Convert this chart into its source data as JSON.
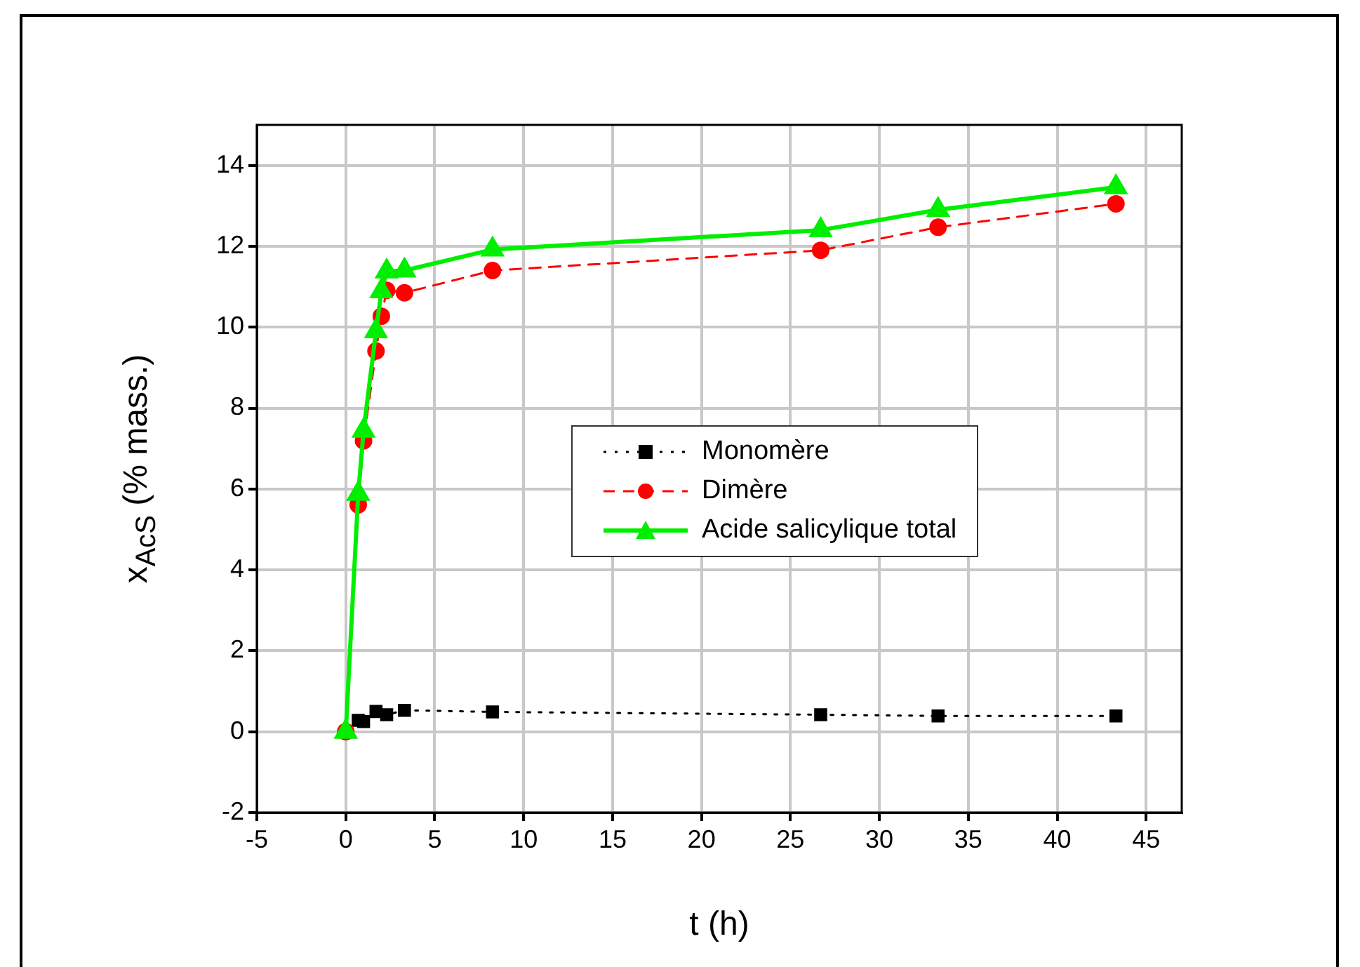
{
  "chart_data": {
    "type": "line",
    "xlabel": "t (h)",
    "ylabel": "x$_{AcS}$ (% mass.)",
    "x": [
      0,
      0.7,
      1.0,
      1.7,
      2.0,
      2.3,
      3.3,
      8.25,
      26.7,
      33.3,
      43.3
    ],
    "series": [
      {
        "name": "Monomère",
        "color": "#000000",
        "marker": "square",
        "line_style": "dotted",
        "x": [
          0,
          0.7,
          1.0,
          1.7,
          2.3,
          3.3,
          8.25,
          26.7,
          33.3,
          43.3
        ],
        "values": [
          0,
          0.28,
          0.25,
          0.5,
          0.42,
          0.53,
          0.49,
          0.42,
          0.39,
          0.39
        ]
      },
      {
        "name": "Dimère",
        "color": "#ff0000",
        "marker": "circle",
        "line_style": "dashed",
        "values": [
          0,
          5.61,
          7.19,
          9.41,
          10.27,
          10.91,
          10.85,
          11.4,
          11.9,
          12.47,
          13.05
        ]
      },
      {
        "name": "Acide salicylique total",
        "color": "#00ee00",
        "marker": "triangle",
        "line_style": "solid",
        "values": [
          0,
          5.88,
          7.44,
          9.9,
          10.89,
          11.38,
          11.4,
          11.92,
          12.4,
          12.9,
          13.46
        ]
      }
    ],
    "xlim": [
      -5,
      47
    ],
    "xticks": [
      -5,
      0,
      5,
      10,
      15,
      20,
      25,
      30,
      35,
      40,
      45
    ],
    "ylim": [
      -2,
      15
    ],
    "yticks": [
      -2,
      0,
      2,
      4,
      6,
      8,
      10,
      12,
      14
    ],
    "grid": true,
    "legend": "center"
  }
}
